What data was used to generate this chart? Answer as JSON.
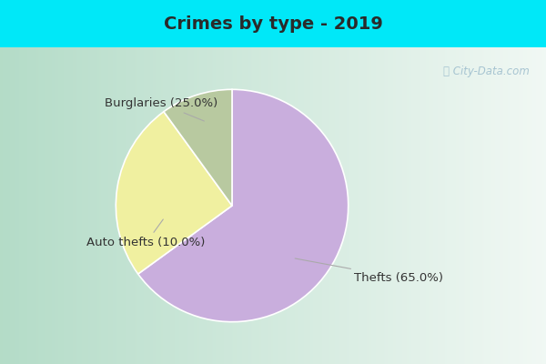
{
  "title": "Crimes by type - 2019",
  "slices": [
    {
      "label": "Thefts (65.0%)",
      "value": 65.0,
      "color": "#c9aedd"
    },
    {
      "label": "Burglaries (25.0%)",
      "value": 25.0,
      "color": "#f0f0a0"
    },
    {
      "label": "Auto thefts (10.0%)",
      "value": 10.0,
      "color": "#b8c9a0"
    }
  ],
  "background_color_outer": "#00e8f8",
  "background_color_inner": "#e0f0e8",
  "title_fontsize": 14,
  "label_fontsize": 9.5,
  "watermark": "ⓘ City-Data.com",
  "start_angle": 90
}
